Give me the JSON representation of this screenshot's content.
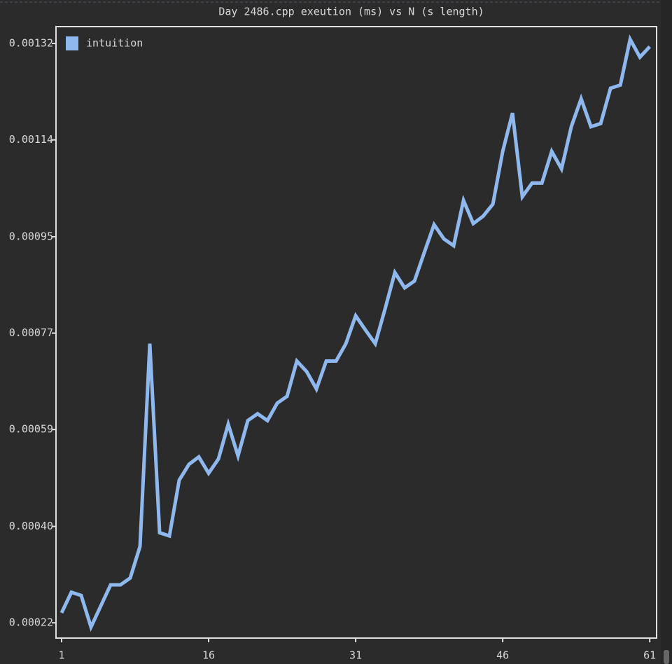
{
  "chart_data": {
    "type": "line",
    "title": "Day 2486.cpp exeution (ms) vs N (s length)",
    "x": [
      1,
      2,
      3,
      4,
      5,
      6,
      7,
      8,
      9,
      10,
      11,
      12,
      13,
      14,
      15,
      16,
      17,
      18,
      19,
      20,
      21,
      22,
      23,
      24,
      25,
      26,
      27,
      28,
      29,
      30,
      31,
      32,
      33,
      34,
      35,
      36,
      37,
      38,
      39,
      40,
      41,
      42,
      43,
      44,
      45,
      46,
      47,
      48,
      49,
      50,
      51,
      52,
      53,
      54,
      55,
      56,
      57,
      58,
      59,
      60,
      61
    ],
    "series": [
      {
        "name": "intuition",
        "color": "#8fb8ee",
        "values": [
          0.000239,
          0.000278,
          0.000272,
          0.000212,
          0.000252,
          0.000292,
          0.000292,
          0.000305,
          0.000365,
          0.00075,
          0.000391,
          0.000385,
          0.000491,
          0.000521,
          0.000535,
          0.000504,
          0.000531,
          0.000597,
          0.000537,
          0.000604,
          0.000617,
          0.000604,
          0.000637,
          0.00065,
          0.000717,
          0.000697,
          0.000664,
          0.000717,
          0.000717,
          0.00075,
          0.000803,
          0.000776,
          0.00075,
          0.000816,
          0.000885,
          0.000856,
          0.000869,
          0.000923,
          0.000976,
          0.000949,
          0.000936,
          0.001022,
          0.000978,
          0.000992,
          0.001015,
          0.001115,
          0.001188,
          0.001029,
          0.001055,
          0.001055,
          0.001115,
          0.001082,
          0.001162,
          0.001215,
          0.001162,
          0.001168,
          0.001235,
          0.001241,
          0.001328,
          0.001294,
          0.001314
        ]
      }
    ],
    "xlim": [
      0.43,
      61.7
    ],
    "xticks": [
      1,
      16,
      31,
      46,
      61
    ],
    "ylim": [
      0.000191,
      0.001352
    ],
    "yticks": [
      {
        "value": 0.00022,
        "label": "0.00022"
      },
      {
        "value": 0.000403,
        "label": "0.00040"
      },
      {
        "value": 0.000587,
        "label": "0.00059"
      },
      {
        "value": 0.00077,
        "label": "0.00077"
      },
      {
        "value": 0.000953,
        "label": "0.00095"
      },
      {
        "value": 0.001137,
        "label": "0.00114"
      },
      {
        "value": 0.00132,
        "label": "0.00132"
      }
    ],
    "legend": "upper left"
  }
}
